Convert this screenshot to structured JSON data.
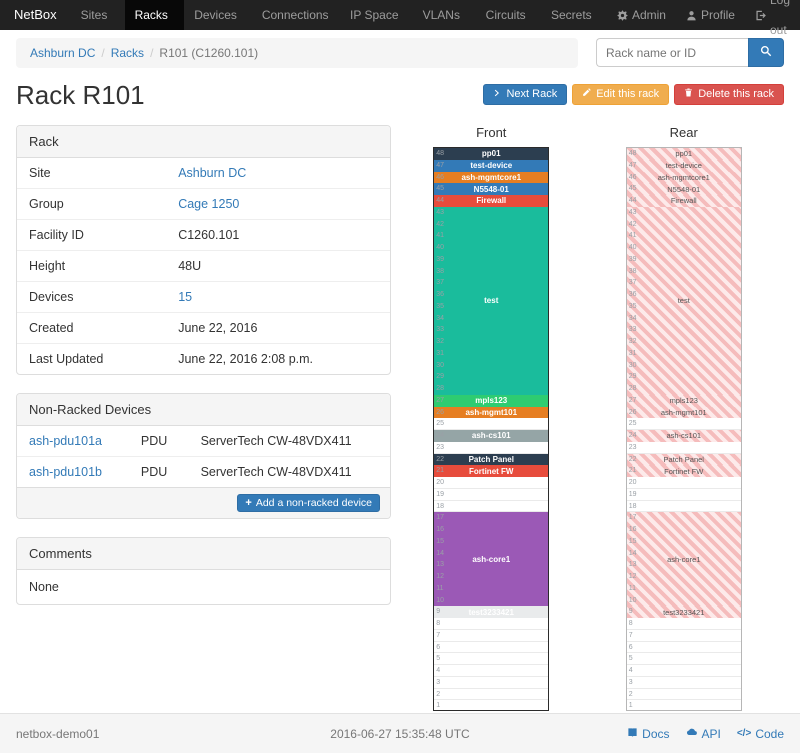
{
  "navbar": {
    "brand": "NetBox",
    "items": [
      {
        "label": "Sites",
        "active": false
      },
      {
        "label": "Racks",
        "active": true
      },
      {
        "label": "Devices",
        "active": false
      },
      {
        "label": "Connections",
        "active": false
      },
      {
        "label": "IP Space",
        "active": false
      },
      {
        "label": "VLANs",
        "active": false
      },
      {
        "label": "Circuits",
        "active": false
      },
      {
        "label": "Secrets",
        "active": false
      }
    ],
    "admin": "Admin",
    "profile": "Profile",
    "logout": "Log out"
  },
  "breadcrumb": {
    "items": [
      {
        "label": "Ashburn DC",
        "link": true
      },
      {
        "label": "Racks",
        "link": true
      },
      {
        "label": "R101 (C1260.101)",
        "link": false
      }
    ]
  },
  "search": {
    "placeholder": "Rack name or ID"
  },
  "actions": {
    "next_rack": "Next Rack",
    "edit_rack": "Edit this rack",
    "delete_rack": "Delete this rack"
  },
  "page": {
    "title": "Rack R101"
  },
  "rack_panel": {
    "title": "Rack",
    "rows": [
      {
        "label": "Site",
        "value": "Ashburn DC",
        "link": true
      },
      {
        "label": "Group",
        "value": "Cage 1250",
        "link": true
      },
      {
        "label": "Facility ID",
        "value": "C1260.101",
        "link": false
      },
      {
        "label": "Height",
        "value": "48U",
        "link": false
      },
      {
        "label": "Devices",
        "value": "15",
        "link": true
      },
      {
        "label": "Created",
        "value": "June 22, 2016",
        "link": false
      },
      {
        "label": "Last Updated",
        "value": "June 22, 2016 2:08 p.m.",
        "link": false
      }
    ]
  },
  "non_racked": {
    "title": "Non-Racked Devices",
    "devices": [
      {
        "name": "ash-pdu101a",
        "role": "PDU",
        "type": "ServerTech CW-48VDX411"
      },
      {
        "name": "ash-pdu101b",
        "role": "PDU",
        "type": "ServerTech CW-48VDX411"
      }
    ],
    "add_label": "Add a non-racked device"
  },
  "comments": {
    "title": "Comments",
    "body": "None"
  },
  "elevation": {
    "units": 48,
    "front_title": "Front",
    "rear_title": "Rear",
    "devices": [
      {
        "u": 48,
        "height": 1,
        "label": "pp01",
        "color": "#2c3e50"
      },
      {
        "u": 47,
        "height": 1,
        "label": "test-device",
        "color": "#337ab7"
      },
      {
        "u": 46,
        "height": 1,
        "label": "ash-mgmtcore1",
        "color": "#e67e22"
      },
      {
        "u": 45,
        "height": 1,
        "label": "N5548-01",
        "color": "#337ab7"
      },
      {
        "u": 44,
        "height": 1,
        "label": "Firewall",
        "color": "#e74c3c"
      },
      {
        "u": 28,
        "height": 16,
        "label": "test",
        "color": "#1abc9c"
      },
      {
        "u": 27,
        "height": 1,
        "label": "mpls123",
        "color": "#2ecc71"
      },
      {
        "u": 26,
        "height": 1,
        "label": "ash-mgmt101",
        "color": "#e67e22"
      },
      {
        "u": 24,
        "height": 1,
        "label": "ash-cs101",
        "color": "#95a5a6"
      },
      {
        "u": 22,
        "height": 1,
        "label": "Patch Panel",
        "color": "#2c3e50"
      },
      {
        "u": 21,
        "height": 1,
        "label": "Fortinet FW",
        "color": "#e74c3c"
      },
      {
        "u": 10,
        "height": 8,
        "label": "ash-core1",
        "color": "#9b59b6"
      },
      {
        "u": 9,
        "height": 1,
        "label": "test3233421",
        "color": "#e9ebec"
      }
    ]
  },
  "footer": {
    "hostname": "netbox-demo01",
    "timestamp": "2016-06-27 15:35:48 UTC",
    "docs": "Docs",
    "api": "API",
    "code": "Code"
  }
}
